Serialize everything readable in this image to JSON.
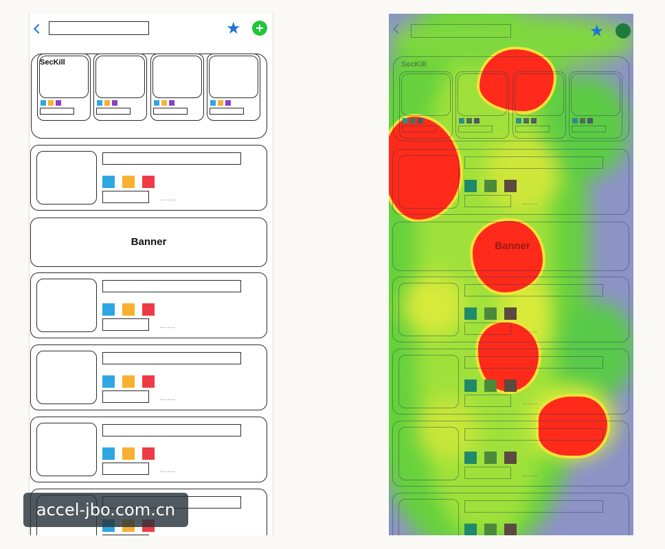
{
  "left_panel": {
    "seckill_label": "SecKill",
    "banner_label": "Banner",
    "list_dots": "......",
    "colors": {
      "blue": "#2ea6e2",
      "orange": "#f7b030",
      "red": "#ef3b47",
      "purple": "#8b3ec8",
      "accent": "#1e73d6",
      "add": "#22c63a"
    }
  },
  "right_panel": {
    "seckill_label": "SecKill",
    "banner_label": "Banner",
    "list_dots": "......",
    "heatmap_colors": {
      "cold": "#8d93c6",
      "warm": "#4fd03a",
      "hot": "#ff2a1a"
    }
  },
  "watermark": {
    "text": "accel-jbo.com.cn"
  }
}
